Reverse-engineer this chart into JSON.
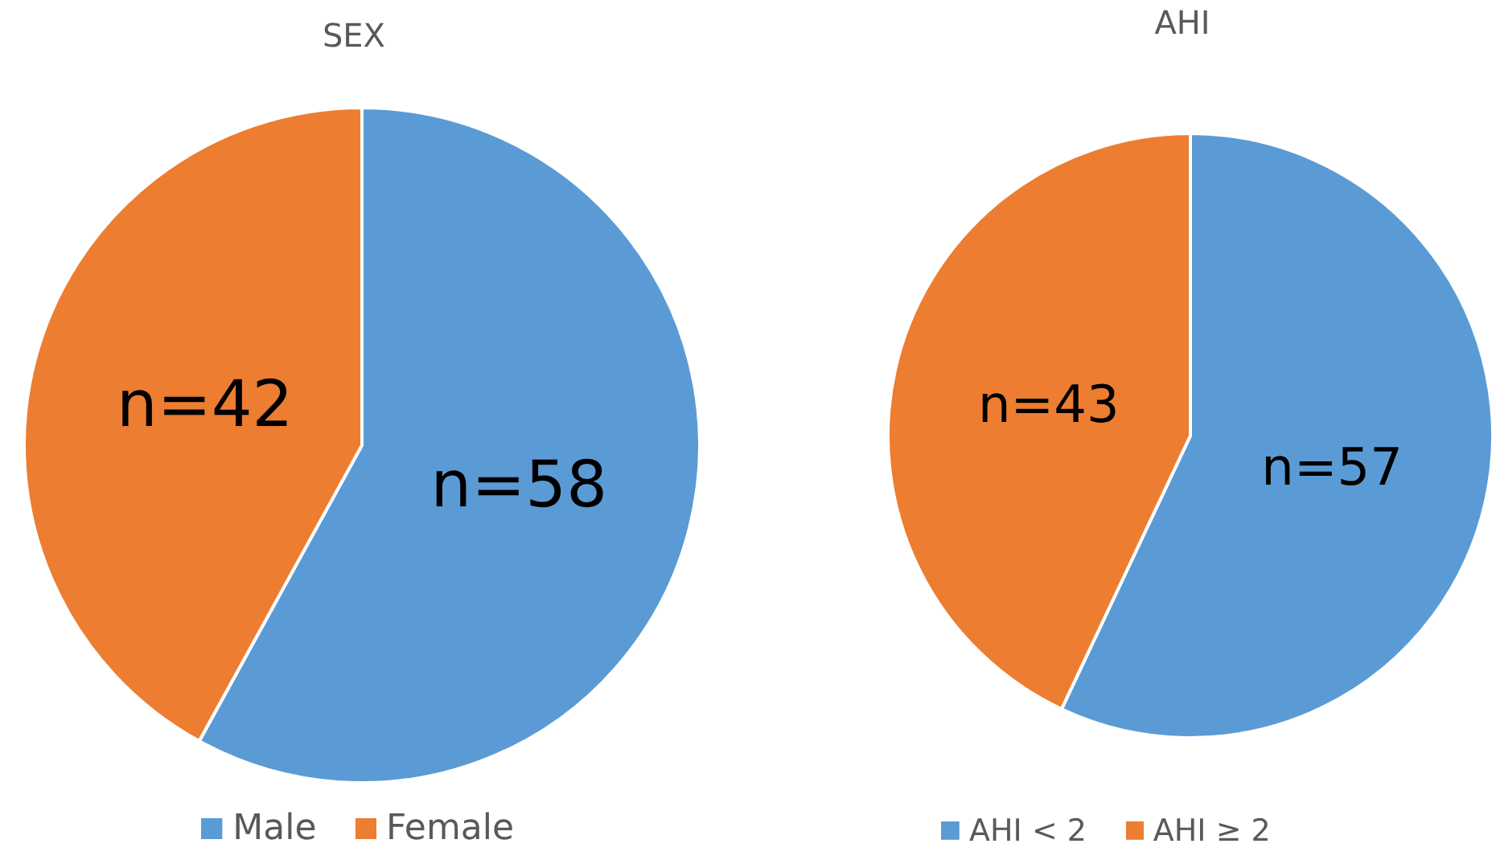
{
  "chart_data": [
    {
      "type": "pie",
      "title": "SEX",
      "categories": [
        "Male",
        "Female"
      ],
      "values": [
        58,
        42
      ],
      "colors": [
        "#5b9bd5",
        "#ed7d31"
      ],
      "value_labels": [
        "n=58",
        "n=42"
      ],
      "legend": "bottom"
    },
    {
      "type": "pie",
      "title": "AHI",
      "categories": [
        "AHI < 2",
        "AHI ≥ 2"
      ],
      "values": [
        57,
        43
      ],
      "colors": [
        "#5b9bd5",
        "#ed7d31"
      ],
      "value_labels": [
        "n=57",
        "n=43"
      ],
      "legend": "bottom"
    }
  ]
}
